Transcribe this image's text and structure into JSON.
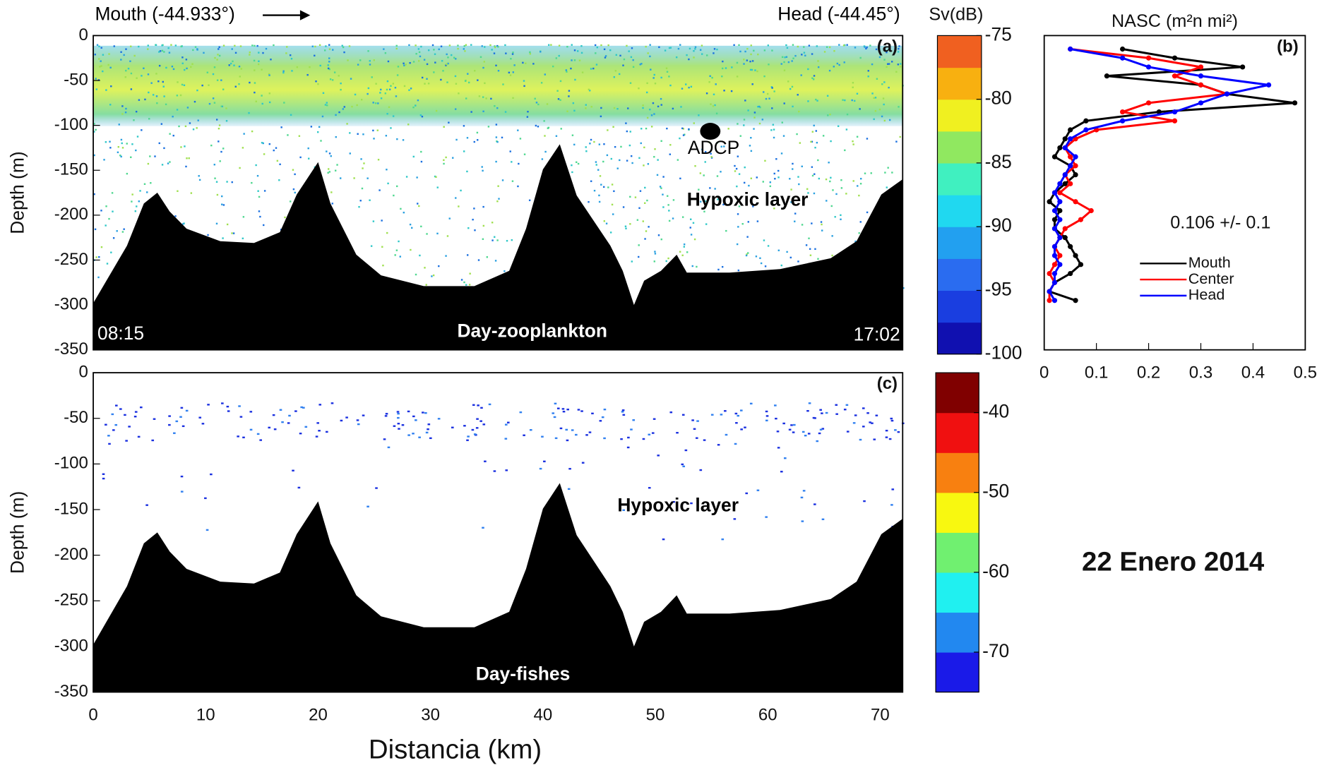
{
  "chart_data": [
    {
      "type": "area",
      "panel_label": "(a)",
      "ylabel": "Depth (m)",
      "xlim": [
        0,
        72
      ],
      "ylim": [
        -350,
        0
      ],
      "yticks": [
        0,
        -50,
        -100,
        -150,
        -200,
        -250,
        -300,
        -350
      ],
      "color": "#000000",
      "x": [
        0,
        3,
        4.5,
        5.7,
        6.8,
        8.3,
        11.3,
        14.3,
        16.6,
        18.1,
        20,
        21.1,
        23.4,
        25.6,
        29.4,
        33.9,
        37,
        38.5,
        40,
        41.5,
        43,
        44.5,
        46,
        47.1,
        48.1,
        49,
        50.5,
        51.9,
        52.8,
        56.6,
        61.1,
        65.6,
        67.9,
        70.1,
        72
      ],
      "values": [
        -298,
        -234,
        -187,
        -175,
        -196,
        -215,
        -229,
        -231,
        -219,
        -177,
        -141,
        -187,
        -244,
        -267,
        -279,
        -279,
        -262,
        -215,
        -149,
        -121,
        -178,
        -206,
        -234,
        -262,
        -300,
        -273,
        -262,
        -244,
        -264,
        -264,
        -260,
        -248,
        -229,
        -177,
        -160
      ],
      "annotations": [
        "Mouth (-44.933°)",
        "Head (-44.45°)",
        "ADCP",
        "Hypoxic layer",
        "08:15",
        "Day-zooplankton",
        "17:02"
      ]
    },
    {
      "type": "area",
      "panel_label": "(c)",
      "ylabel": "Depth (m)",
      "xlabel": "Distancia (km)",
      "xlim": [
        0,
        72
      ],
      "xticks": [
        0,
        10,
        20,
        30,
        40,
        50,
        60,
        70
      ],
      "ylim": [
        -350,
        0
      ],
      "yticks": [
        0,
        -50,
        -100,
        -150,
        -200,
        -250,
        -300,
        -350
      ],
      "color": "#000000",
      "x": [
        0,
        3,
        4.5,
        5.7,
        6.8,
        8.3,
        11.3,
        14.3,
        16.6,
        18.1,
        20,
        21.1,
        23.4,
        25.6,
        29.4,
        33.9,
        37,
        38.5,
        40,
        41.5,
        43,
        44.5,
        46,
        47.1,
        48.1,
        49,
        50.5,
        51.9,
        52.8,
        56.6,
        61.1,
        65.6,
        67.9,
        70.1,
        72
      ],
      "values": [
        -298,
        -234,
        -187,
        -175,
        -196,
        -215,
        -229,
        -231,
        -219,
        -177,
        -141,
        -187,
        -244,
        -267,
        -279,
        -279,
        -262,
        -215,
        -149,
        -121,
        -178,
        -206,
        -234,
        -262,
        -300,
        -273,
        -262,
        -244,
        -264,
        -264,
        -260,
        -248,
        -229,
        -177,
        -160
      ],
      "annotations": [
        "Hypoxic layer",
        "Day-fishes"
      ]
    },
    {
      "type": "line",
      "title": "NASC (m²n mi²)",
      "panel_label": "(b)",
      "xlim": [
        0,
        0.5
      ],
      "xticks": [
        0,
        0.1,
        0.2,
        0.3,
        0.4,
        0.5
      ],
      "ylim": [
        -350,
        0
      ],
      "y": [
        -15,
        -25,
        -35,
        -45,
        -55,
        -65,
        -75,
        -85,
        -95,
        -105,
        -115,
        -125,
        -135,
        -145,
        -155,
        -165,
        -175,
        -185,
        -195,
        -205,
        -215,
        -225,
        -235,
        -245,
        -255,
        -265,
        -275,
        -285,
        -295
      ],
      "series": [
        {
          "name": "Mouth",
          "color": "#000000",
          "values": [
            0.15,
            0.25,
            0.38,
            0.12,
            0.3,
            0.35,
            0.48,
            0.22,
            0.08,
            0.05,
            0.04,
            0.03,
            0.02,
            0.05,
            0.06,
            0.04,
            0.02,
            0.01,
            0.03,
            0.02,
            0.02,
            0.04,
            0.05,
            0.06,
            0.07,
            0.05,
            0.02,
            0.01,
            0.06
          ]
        },
        {
          "name": "Center",
          "color": "#ff0000",
          "values": [
            0.05,
            0.2,
            0.3,
            0.25,
            0.3,
            0.35,
            0.2,
            0.15,
            0.25,
            0.1,
            0.06,
            0.04,
            0.05,
            0.06,
            0.04,
            0.05,
            0.03,
            0.06,
            0.09,
            0.07,
            0.04,
            0.03,
            0.02,
            0.03,
            0.02,
            0.01,
            0.02,
            0.01,
            0.01
          ]
        },
        {
          "name": "Head",
          "color": "#0000ff",
          "values": [
            0.05,
            0.15,
            0.2,
            0.3,
            0.43,
            0.35,
            0.3,
            0.25,
            0.15,
            0.08,
            0.05,
            0.04,
            0.06,
            0.05,
            0.04,
            0.03,
            0.02,
            0.03,
            0.02,
            0.03,
            0.02,
            0.03,
            0.02,
            0.02,
            0.03,
            0.02,
            0.02,
            0.01,
            0.02
          ]
        }
      ],
      "annotations": [
        "0.106 +/- 0.1"
      ]
    },
    {
      "type": "colorbar",
      "title": "Sv(dB)",
      "ylim": [
        -100,
        -75
      ],
      "yticks": [
        -75,
        -80,
        -85,
        -90,
        -95,
        -100
      ],
      "colors": [
        "#1010b0",
        "#1a3ee0",
        "#2a6cf0",
        "#22a0f0",
        "#20d8f0",
        "#40f0c0",
        "#90e860",
        "#f0f020",
        "#f8b010",
        "#f06020"
      ]
    },
    {
      "type": "colorbar",
      "ylim": [
        -75,
        -35
      ],
      "yticks": [
        -40,
        -50,
        -60,
        -70
      ],
      "colors": [
        "#1a1ae8",
        "#2288f0",
        "#20f0f0",
        "#70f070",
        "#f8f810",
        "#f88010",
        "#f01010",
        "#800000"
      ]
    }
  ],
  "caption": "22 Enero 2014"
}
